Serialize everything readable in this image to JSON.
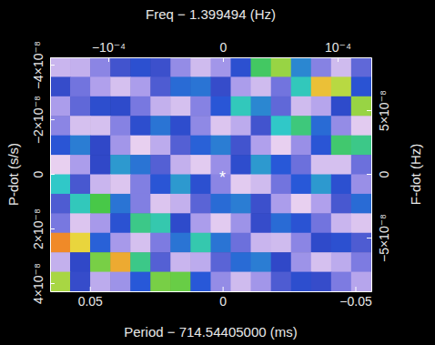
{
  "chart_data": {
    "type": "heatmap",
    "x_label": "Period − 714.54405000 (ms)",
    "y_label": "P-dot (s/s)",
    "x2_label": "Freq − 1.399494 (Hz)",
    "y2_label": "F-dot (Hz)",
    "xlim": [
      0.065,
      -0.056
    ],
    "xticks": [
      0.05,
      0,
      {
        "value": -0.05,
        "label": "−0.05"
      }
    ],
    "ylim": [
      4.3e-08,
      -4.27e-08
    ],
    "yticks": [
      {
        "value": -4e-08,
        "label": "−4×10⁻⁸"
      },
      {
        "value": -2e-08,
        "label": "−2×10⁻⁸"
      },
      0,
      {
        "value": 2e-08,
        "label": "2×10⁻⁸"
      },
      {
        "value": 4e-08,
        "label": "4×10⁻⁸"
      }
    ],
    "x2lim": [
      -0.0001508,
      0.0001294
    ],
    "x2ticks": [
      {
        "value": -0.0001,
        "label": "−10⁻⁴"
      },
      0,
      {
        "value": 0.0001,
        "label": "10⁻⁴"
      }
    ],
    "y2lim": [
      -9.21e-08,
      9.14e-08
    ],
    "y2ticks": [
      {
        "value": 5e-08,
        "label": "5×10⁻⁸"
      },
      0,
      {
        "value": -5e-08,
        "label": "−5×10⁻⁸"
      }
    ],
    "x": [
      0.0612,
      0.0537,
      0.0461,
      0.0385,
      0.031,
      0.0234,
      0.0159,
      0.0083,
      0.0007,
      -0.0068,
      -0.0144,
      -0.022,
      -0.0295,
      -0.0371,
      -0.0446,
      -0.0522
    ],
    "y": [
      -3.913e-08,
      -3.199e-08,
      -2.485e-08,
      -1.77e-08,
      -1.056e-08,
      -3.42e-09,
      3.72e-09,
      1.086e-08,
      1.8e-08,
      2.514e-08,
      3.229e-08,
      3.943e-08
    ],
    "z": [
      [
        0.88,
        0.87,
        0.76,
        0.63,
        0.55,
        0.62,
        0.78,
        0.89,
        0.81,
        0.55,
        0.3,
        0.23,
        0.45,
        0.75,
        0.89,
        0.68
      ],
      [
        0.61,
        0.71,
        0.84,
        0.9,
        0.83,
        0.65,
        0.48,
        0.47,
        0.61,
        0.83,
        0.89,
        0.71,
        0.37,
        0.15,
        0.21,
        0.53
      ],
      [
        0.83,
        0.68,
        0.56,
        0.58,
        0.72,
        0.87,
        0.9,
        0.75,
        0.51,
        0.37,
        0.45,
        0.68,
        0.89,
        0.85,
        0.58,
        0.23
      ],
      [
        0.76,
        0.9,
        0.9,
        0.75,
        0.56,
        0.47,
        0.57,
        0.77,
        0.91,
        0.86,
        0.63,
        0.38,
        0.32,
        0.48,
        0.78,
        0.92
      ],
      [
        0.52,
        0.46,
        0.6,
        0.81,
        0.93,
        0.86,
        0.66,
        0.49,
        0.46,
        0.63,
        0.84,
        0.93,
        0.79,
        0.52,
        0.31,
        0.33
      ],
      [
        0.93,
        0.83,
        0.6,
        0.43,
        0.47,
        0.66,
        0.87,
        0.92,
        0.79,
        0.57,
        0.43,
        0.5,
        0.7,
        0.9,
        0.9,
        0.7
      ],
      [
        0.38,
        0.64,
        0.88,
        0.91,
        0.74,
        0.52,
        0.43,
        0.55,
        0.76,
        0.92,
        0.89,
        0.71,
        0.5,
        0.43,
        0.55,
        0.79
      ],
      [
        0.65,
        0.37,
        0.28,
        0.47,
        0.74,
        0.91,
        0.87,
        0.67,
        0.48,
        0.46,
        0.62,
        0.83,
        0.93,
        0.84,
        0.64,
        0.48
      ],
      [
        0.72,
        0.91,
        0.82,
        0.54,
        0.33,
        0.36,
        0.58,
        0.83,
        0.92,
        0.8,
        0.61,
        0.48,
        0.53,
        0.71,
        0.88,
        0.91
      ],
      [
        0.1,
        0.17,
        0.49,
        0.82,
        0.9,
        0.73,
        0.47,
        0.36,
        0.47,
        0.7,
        0.88,
        0.89,
        0.76,
        0.59,
        0.55,
        0.65
      ],
      [
        0.87,
        0.6,
        0.25,
        0.13,
        0.33,
        0.66,
        0.88,
        0.86,
        0.67,
        0.48,
        0.46,
        0.6,
        0.8,
        0.9,
        0.86,
        0.73
      ],
      [
        0.22,
        0.61,
        0.86,
        0.8,
        0.5,
        0.25,
        0.26,
        0.5,
        0.78,
        0.89,
        0.81,
        0.65,
        0.56,
        0.61,
        0.73,
        0.85
      ]
    ],
    "annotations": [
      {
        "text": "*",
        "x": 0,
        "y": 0
      }
    ]
  }
}
